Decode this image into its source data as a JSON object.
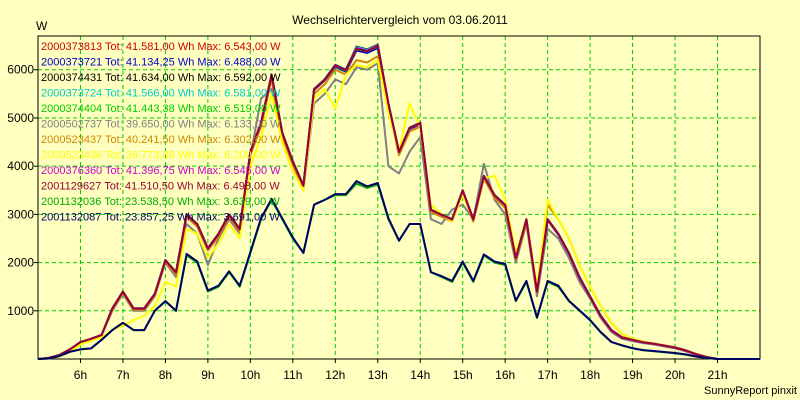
{
  "chart_data": {
    "type": "line",
    "title": "Wechselrichtervergleich vom 03.06.2011",
    "ylabel": "W",
    "xlabel": "",
    "credit": "SunnyReport pinxit",
    "ylim": [
      0,
      6700
    ],
    "xlim": [
      5.0,
      22.0
    ],
    "yticks": [
      1000,
      2000,
      3000,
      4000,
      5000,
      6000
    ],
    "xticks": [
      {
        "value": 6,
        "label": "6h"
      },
      {
        "value": 7,
        "label": "7h"
      },
      {
        "value": 8,
        "label": "8h"
      },
      {
        "value": 9,
        "label": "9h"
      },
      {
        "value": 10,
        "label": "10h"
      },
      {
        "value": 11,
        "label": "11h"
      },
      {
        "value": 12,
        "label": "12h"
      },
      {
        "value": 13,
        "label": "13h"
      },
      {
        "value": 14,
        "label": "14h"
      },
      {
        "value": 15,
        "label": "15h"
      },
      {
        "value": 16,
        "label": "16h"
      },
      {
        "value": 17,
        "label": "17h"
      },
      {
        "value": 18,
        "label": "18h"
      },
      {
        "value": 19,
        "label": "19h"
      },
      {
        "value": 20,
        "label": "20h"
      },
      {
        "value": 21,
        "label": "21h"
      }
    ],
    "grid": true,
    "legend_position": "top-left",
    "colors": {
      "background": "#ffffc0",
      "grid": "#00cc00",
      "axis": "#000000"
    },
    "x": [
      5.0,
      5.25,
      5.5,
      5.75,
      6.0,
      6.25,
      6.5,
      6.75,
      7.0,
      7.25,
      7.5,
      7.75,
      8.0,
      8.25,
      8.5,
      8.75,
      9.0,
      9.25,
      9.5,
      9.75,
      10.0,
      10.25,
      10.5,
      10.75,
      11.0,
      11.25,
      11.5,
      11.75,
      12.0,
      12.25,
      12.5,
      12.75,
      13.0,
      13.25,
      13.5,
      13.75,
      14.0,
      14.25,
      14.5,
      14.75,
      15.0,
      15.25,
      15.5,
      15.75,
      16.0,
      16.25,
      16.5,
      16.75,
      17.0,
      17.25,
      17.5,
      17.75,
      18.0,
      18.25,
      18.5,
      18.75,
      19.0,
      19.25,
      19.5,
      19.75,
      20.0,
      20.25,
      20.5,
      20.75,
      21.0,
      21.25,
      21.5,
      21.75,
      22.0
    ],
    "series": [
      {
        "name": "2000373813",
        "legend": "2000373813 Tot: 41.581,00 Wh Max: 6.543,00 W",
        "color": "#cc0000",
        "values": [
          0,
          20,
          80,
          200,
          350,
          420,
          500,
          1050,
          1400,
          1050,
          1050,
          1350,
          2050,
          1800,
          3000,
          2800,
          2300,
          2600,
          3000,
          2700,
          4300,
          4900,
          5900,
          4700,
          4100,
          3600,
          5600,
          5800,
          6100,
          6000,
          6450,
          6400,
          6500,
          5300,
          4300,
          4800,
          4900,
          3100,
          3000,
          2900,
          3500,
          2900,
          3800,
          3400,
          3200,
          2100,
          2900,
          1400,
          2900,
          2600,
          2200,
          1700,
          1300,
          900,
          600,
          450,
          400,
          350,
          320,
          280,
          240,
          180,
          100,
          40,
          0,
          0,
          0,
          0,
          0
        ]
      },
      {
        "name": "2000373721",
        "legend": "2000373721 Tot: 41.134,25 Wh Max: 6.488,00 W",
        "color": "#0000cc",
        "values": [
          0,
          20,
          80,
          200,
          350,
          420,
          500,
          1040,
          1390,
          1040,
          1040,
          1340,
          2040,
          1790,
          2980,
          2780,
          2280,
          2580,
          2980,
          2680,
          4280,
          4880,
          5860,
          4680,
          4080,
          3580,
          5580,
          5780,
          6060,
          5960,
          6400,
          6350,
          6450,
          5260,
          4270,
          4770,
          4870,
          3080,
          2980,
          2880,
          3480,
          2880,
          3780,
          3380,
          3180,
          2080,
          2880,
          1390,
          2880,
          2580,
          2180,
          1680,
          1280,
          880,
          590,
          440,
          390,
          340,
          310,
          270,
          230,
          170,
          95,
          38,
          0,
          0,
          0,
          0,
          0
        ]
      },
      {
        "name": "2000374431",
        "legend": "2000374431 Tot: 41.634,00 Wh Max: 6.592,00 W",
        "color": "#000000",
        "values": [
          0,
          20,
          80,
          200,
          350,
          420,
          500,
          1050,
          1400,
          1050,
          1050,
          1350,
          2050,
          1800,
          3000,
          2800,
          2300,
          2600,
          3000,
          2700,
          4300,
          4900,
          5900,
          4700,
          4100,
          3600,
          5600,
          5800,
          6100,
          6000,
          6480,
          6420,
          6520,
          5300,
          4300,
          4800,
          4900,
          3100,
          3000,
          2900,
          3500,
          2900,
          3800,
          3400,
          3200,
          2100,
          2900,
          1400,
          2900,
          2600,
          2200,
          1700,
          1300,
          900,
          600,
          450,
          400,
          350,
          320,
          280,
          240,
          180,
          100,
          40,
          0,
          0,
          0,
          0,
          0
        ]
      },
      {
        "name": "2000373724",
        "legend": "2000373724 Tot: 41.566,00 Wh Max: 6.581,00 W",
        "color": "#00cccc",
        "values": [
          0,
          20,
          80,
          200,
          350,
          420,
          500,
          1050,
          1400,
          1050,
          1050,
          1350,
          2050,
          1800,
          3000,
          2800,
          2300,
          2600,
          3000,
          2700,
          4300,
          4900,
          5900,
          4700,
          4100,
          3600,
          5600,
          5800,
          6100,
          6000,
          6470,
          6410,
          6510,
          5300,
          4300,
          4800,
          4900,
          3100,
          3000,
          2900,
          3500,
          2900,
          3800,
          3400,
          3200,
          2100,
          2900,
          1400,
          2900,
          2600,
          2200,
          1700,
          1300,
          900,
          600,
          450,
          400,
          350,
          320,
          280,
          240,
          180,
          100,
          40,
          0,
          0,
          0,
          0,
          0
        ]
      },
      {
        "name": "2000374404",
        "legend": "2000374404 Tot: 41.443,38 Wh Max: 6.519,00 W",
        "color": "#00cc00",
        "values": [
          0,
          20,
          80,
          200,
          350,
          420,
          500,
          1045,
          1395,
          1045,
          1045,
          1345,
          2045,
          1795,
          2990,
          2790,
          2290,
          2590,
          2990,
          2690,
          4290,
          4890,
          5880,
          4690,
          4090,
          3590,
          5590,
          5790,
          6080,
          5980,
          6430,
          6380,
          6480,
          5280,
          4290,
          4790,
          4890,
          3090,
          2990,
          2890,
          3490,
          2890,
          3790,
          3390,
          3190,
          2090,
          2890,
          1395,
          2890,
          2590,
          2190,
          1690,
          1290,
          890,
          595,
          445,
          395,
          345,
          315,
          275,
          235,
          175,
          98,
          39,
          0,
          0,
          0,
          0,
          0
        ]
      },
      {
        "name": "2000502737",
        "legend": "2000502737 Tot: 39.650,00 Wh Max: 6.133,00 W",
        "color": "#808080",
        "values": [
          0,
          20,
          80,
          200,
          350,
          420,
          500,
          1000,
          1350,
          1000,
          1000,
          1300,
          2000,
          1700,
          2800,
          2600,
          1950,
          2500,
          2900,
          2600,
          4200,
          5400,
          5600,
          4500,
          3900,
          3500,
          5300,
          5500,
          5800,
          5700,
          6050,
          6000,
          6133,
          4000,
          3850,
          4300,
          4600,
          2900,
          2800,
          3100,
          3200,
          2900,
          4050,
          3300,
          3000,
          2000,
          2800,
          1300,
          2700,
          2500,
          2100,
          1600,
          1250,
          850,
          560,
          420,
          370,
          330,
          300,
          260,
          220,
          160,
          90,
          35,
          0,
          0,
          0,
          0,
          0
        ]
      },
      {
        "name": "2000523437",
        "legend": "2000523437 Tot: 40.241,50 Wh Max: 6.302,00 W",
        "color": "#cc8800",
        "values": [
          0,
          20,
          80,
          200,
          350,
          420,
          500,
          1020,
          1370,
          1020,
          1020,
          1320,
          2020,
          1760,
          2950,
          2740,
          2250,
          2540,
          2940,
          2640,
          4230,
          4820,
          5800,
          4620,
          4030,
          3530,
          5500,
          5700,
          6000,
          5900,
          6200,
          6150,
          6280,
          5200,
          4230,
          4720,
          4820,
          3050,
          2950,
          2850,
          3440,
          2850,
          3740,
          3340,
          3140,
          2060,
          2850,
          1370,
          3200,
          2900,
          2500,
          1950,
          1500,
          1100,
          750,
          520,
          420,
          360,
          320,
          280,
          240,
          180,
          100,
          40,
          0,
          0,
          0,
          0,
          0
        ]
      },
      {
        "name": "2000523438",
        "legend": "2000523438 Tot: 39.773,88 Wh Max: 6.200,00 W",
        "color": "#ffff00",
        "values": [
          0,
          10,
          50,
          150,
          300,
          380,
          450,
          600,
          700,
          800,
          900,
          1100,
          1600,
          1500,
          2700,
          2600,
          2100,
          2400,
          2800,
          2500,
          4000,
          4600,
          5500,
          4500,
          3900,
          3500,
          5400,
          5600,
          5200,
          5900,
          6100,
          6050,
          6200,
          5100,
          4300,
          5300,
          4800,
          3200,
          3000,
          2850,
          3400,
          2900,
          3750,
          3800,
          3300,
          2200,
          2900,
          1500,
          3300,
          2900,
          2500,
          1950,
          1500,
          1100,
          760,
          520,
          420,
          360,
          320,
          280,
          240,
          180,
          100,
          40,
          0,
          0,
          0,
          0,
          0
        ]
      },
      {
        "name": "2000376360",
        "legend": "2000376360 Tot: 41.396,75 Wh Max: 6.545,00 W",
        "color": "#cc00cc",
        "values": [
          0,
          20,
          80,
          200,
          350,
          420,
          500,
          1045,
          1395,
          1045,
          1045,
          1345,
          2045,
          1795,
          2990,
          2790,
          2290,
          2590,
          2990,
          2690,
          4290,
          4890,
          5890,
          4690,
          4090,
          3590,
          5590,
          5790,
          6090,
          5990,
          6450,
          6390,
          6500,
          5290,
          4290,
          4790,
          4890,
          3090,
          2990,
          2890,
          3490,
          2890,
          3790,
          3390,
          3190,
          2090,
          2890,
          1395,
          2890,
          2590,
          2190,
          1690,
          1290,
          890,
          595,
          445,
          395,
          345,
          315,
          275,
          235,
          175,
          98,
          39,
          0,
          0,
          0,
          0,
          0
        ]
      },
      {
        "name": "2001129627",
        "legend": "2001129627 Tot: 41.510,50 Wh Max: 6.498,00 W",
        "color": "#990033",
        "values": [
          0,
          20,
          80,
          200,
          350,
          420,
          500,
          1048,
          1398,
          1048,
          1048,
          1348,
          2048,
          1798,
          2995,
          2795,
          2295,
          2595,
          2995,
          2695,
          4295,
          4895,
          5895,
          4695,
          4095,
          3595,
          5595,
          5795,
          6095,
          5995,
          6440,
          6380,
          6490,
          5295,
          4295,
          4795,
          4895,
          3095,
          2995,
          2895,
          3495,
          2895,
          3795,
          3395,
          3195,
          2095,
          2895,
          1398,
          2895,
          2595,
          2195,
          1695,
          1295,
          895,
          598,
          448,
          398,
          348,
          318,
          278,
          238,
          178,
          99,
          39,
          0,
          0,
          0,
          0,
          0
        ]
      },
      {
        "name": "2001132036",
        "legend": "2001132036 Tot: 23.538,50 Wh Max: 3.639,00 W",
        "color": "#00aa00",
        "values": [
          0,
          10,
          60,
          150,
          200,
          220,
          400,
          600,
          750,
          600,
          600,
          1000,
          1200,
          1000,
          2150,
          2000,
          1400,
          1500,
          1800,
          1500,
          2200,
          2900,
          3300,
          2900,
          2500,
          2200,
          3200,
          3300,
          3400,
          3400,
          3639,
          3550,
          3620,
          2900,
          2450,
          2800,
          2800,
          1800,
          1700,
          1600,
          2000,
          1600,
          2150,
          2000,
          1950,
          1200,
          1600,
          850,
          1600,
          1500,
          1200,
          1000,
          800,
          550,
          350,
          280,
          220,
          180,
          160,
          140,
          120,
          90,
          50,
          20,
          0,
          0,
          0,
          0,
          0
        ]
      },
      {
        "name": "2001132087",
        "legend": "2001132087 Tot: 23.857,25 Wh Max: 3.691,00 W",
        "color": "#000066",
        "values": [
          0,
          10,
          60,
          150,
          200,
          220,
          400,
          600,
          750,
          600,
          600,
          1000,
          1200,
          1000,
          2180,
          2020,
          1420,
          1520,
          1820,
          1520,
          2220,
          2920,
          3320,
          2920,
          2520,
          2200,
          3200,
          3300,
          3420,
          3420,
          3691,
          3580,
          3650,
          2920,
          2460,
          2800,
          2800,
          1800,
          1720,
          1620,
          2020,
          1620,
          2170,
          2020,
          1970,
          1210,
          1620,
          860,
          1620,
          1520,
          1210,
          1010,
          810,
          560,
          355,
          285,
          225,
          185,
          165,
          145,
          125,
          95,
          52,
          21,
          0,
          0,
          0,
          0,
          0
        ]
      }
    ]
  }
}
